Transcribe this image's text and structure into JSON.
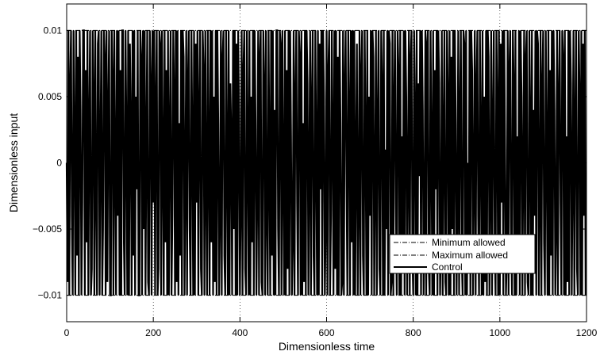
{
  "chart_data": {
    "type": "line",
    "title": "",
    "xlabel": "Dimensionless time",
    "ylabel": "Dimensionless input",
    "xlim": [
      0,
      1200
    ],
    "ylim": [
      -0.012,
      0.012
    ],
    "xticks": [
      0,
      200,
      400,
      600,
      800,
      1000,
      1200
    ],
    "xtick_labels": [
      "0",
      "200",
      "400",
      "600",
      "800",
      "1000",
      "1200"
    ],
    "yticks": [
      -0.01,
      -0.005,
      0,
      0.005,
      0.01
    ],
    "ytick_labels": [
      "−0.01",
      "−0.005",
      "0",
      "0.005",
      "0.01"
    ],
    "grid": "vertical dotted",
    "legend_position": "lower-right",
    "series": [
      {
        "name": "Minimum allowed",
        "style": "dash-dot",
        "x": [
          0,
          1200
        ],
        "y": [
          -0.01,
          -0.01
        ]
      },
      {
        "name": "Maximum allowed",
        "style": "dash-dot",
        "x": [
          0,
          1200
        ],
        "y": [
          0.01,
          0.01
        ]
      },
      {
        "name": "Control",
        "style": "solid",
        "x_start": 0,
        "x_step": 2,
        "y": [
          0.0,
          -0.009,
          0.01,
          -0.01,
          0.006,
          0.01,
          -0.004,
          -0.01,
          0.01,
          0.002,
          -0.01,
          0.01,
          -0.007,
          0.008,
          -0.01,
          0.01,
          0.004,
          -0.01,
          -0.003,
          0.01,
          0.01,
          -0.01,
          0.007,
          -0.006,
          0.01,
          -0.01,
          0.003,
          0.01,
          -0.01,
          -0.008,
          0.01,
          0.005,
          -0.01,
          0.01,
          -0.002,
          -0.01,
          0.009,
          0.01,
          -0.01,
          0.001,
          0.01,
          -0.01,
          -0.005,
          0.01,
          0.008,
          -0.01,
          0.01,
          -0.009,
          0.004,
          0.01,
          -0.01,
          -0.01,
          0.01,
          0.006,
          -0.01,
          0.01,
          0.0,
          -0.01,
          0.01,
          -0.004,
          0.01,
          -0.01,
          0.007,
          -0.01,
          0.01,
          0.01,
          -0.006,
          -0.01,
          0.01,
          0.002,
          -0.01,
          0.01,
          -0.01,
          0.009,
          0.003,
          -0.01,
          0.01,
          -0.007,
          0.01,
          -0.01,
          0.005,
          -0.002,
          0.01,
          -0.01,
          -0.01,
          0.01,
          0.008,
          -0.01,
          0.01,
          -0.005,
          0.01,
          -0.01,
          0.001,
          0.01,
          -0.009,
          -0.01,
          0.01,
          0.006,
          -0.01,
          0.01,
          -0.003,
          0.01,
          -0.01,
          0.004,
          0.01,
          -0.01,
          -0.008,
          0.01,
          0.009,
          -0.01,
          0.01,
          0.0,
          -0.01,
          0.01,
          -0.006,
          0.007,
          -0.01,
          0.01,
          -0.01,
          0.002,
          0.01,
          -0.01,
          -0.004,
          0.01,
          0.005,
          -0.01,
          0.01,
          -0.009,
          0.01,
          -0.01,
          0.003,
          -0.007,
          0.01,
          -0.01,
          0.01,
          0.008,
          -0.01,
          -0.001,
          0.01,
          -0.01,
          0.006,
          0.01,
          -0.005,
          -0.01,
          0.01,
          0.002,
          -0.01,
          0.01,
          -0.01,
          0.009,
          -0.003,
          0.01,
          -0.01,
          0.004,
          0.01,
          -0.008,
          -0.01,
          0.01,
          0.007,
          -0.01,
          0.01,
          -0.002,
          -0.01,
          0.01,
          0.001,
          -0.01,
          0.01,
          -0.006,
          0.01,
          -0.01,
          0.005,
          -0.009,
          0.01,
          -0.01,
          0.01,
          0.003,
          -0.01,
          -0.004,
          0.01,
          -0.01,
          0.008,
          0.01,
          -0.007,
          -0.01,
          0.01,
          0.0,
          -0.01,
          0.01,
          -0.01,
          0.006,
          0.002,
          -0.01,
          0.01,
          -0.005,
          0.01,
          -0.01,
          0.009,
          -0.01,
          0.01,
          0.004,
          -0.01,
          -0.003,
          0.01,
          -0.01,
          0.007,
          0.01,
          -0.008,
          -0.01,
          0.01,
          0.001,
          -0.01,
          0.01,
          -0.01,
          0.005,
          -0.006,
          0.01,
          -0.01,
          0.01,
          0.003,
          -0.01,
          -0.002,
          0.01,
          -0.01,
          0.008,
          0.01,
          -0.009,
          -0.01,
          0.01,
          0.006,
          -0.01,
          0.01,
          -0.004,
          -0.01,
          0.01,
          0.0,
          -0.01,
          0.01,
          -0.007,
          0.01,
          -0.01,
          0.004,
          -0.01,
          0.01,
          0.01,
          -0.005,
          -0.01,
          0.01,
          0.009,
          -0.01,
          0.01,
          -0.001,
          -0.01,
          0.01,
          -0.01,
          0.007,
          -0.008,
          0.01,
          -0.01,
          0.01,
          0.002,
          -0.01,
          -0.006,
          0.01,
          -0.01,
          0.005,
          0.01,
          -0.003,
          -0.01,
          0.01,
          0.008,
          -0.01,
          0.01,
          -0.01,
          0.003,
          -0.009,
          0.01,
          -0.01,
          0.01,
          0.006,
          -0.01,
          0.0,
          0.01,
          -0.01,
          0.004,
          0.01,
          -0.007,
          -0.01,
          0.01,
          0.001,
          -0.01,
          0.01,
          -0.01,
          0.009,
          -0.002,
          0.01,
          -0.01,
          0.01,
          0.005,
          -0.01,
          -0.005,
          0.01,
          -0.01,
          0.007,
          0.01,
          -0.01,
          -0.004,
          0.01,
          0.002,
          -0.01,
          0.01,
          -0.008,
          0.01,
          -0.01,
          0.008,
          -0.01,
          0.01,
          0.003,
          -0.01,
          -0.009,
          0.01,
          -0.01,
          0.006,
          0.01,
          -0.001,
          -0.01,
          0.01,
          0.004,
          -0.01,
          0.01,
          -0.006,
          0.01,
          -0.01,
          0.01,
          -0.01,
          0.0,
          0.009,
          -0.01,
          -0.003,
          0.01,
          -0.01,
          0.007,
          0.01,
          -0.007,
          -0.01,
          0.01,
          0.002,
          -0.01,
          0.01,
          -0.01,
          0.005,
          -0.004,
          0.01,
          -0.01,
          0.01,
          0.008,
          -0.01,
          -0.002,
          0.01,
          -0.01,
          0.003,
          0.01,
          -0.008,
          -0.01,
          0.01,
          0.006,
          -0.01,
          0.01,
          -0.01,
          0.001,
          -0.005,
          0.01,
          -0.01,
          0.01,
          0.009,
          -0.01,
          -0.009,
          0.01,
          -0.01,
          0.004,
          0.01,
          -0.003,
          -0.01,
          0.01,
          0.007,
          -0.01,
          0.01,
          -0.01,
          0.002,
          -0.006,
          0.01,
          -0.01,
          0.01,
          0.005,
          -0.01,
          0.0,
          0.01,
          -0.01,
          0.008,
          0.01,
          -0.007,
          -0.01,
          0.01,
          0.003,
          -0.01,
          0.01,
          -0.01,
          0.006,
          -0.001,
          0.01,
          -0.01,
          0.01,
          0.004,
          -0.01,
          -0.004,
          0.01,
          -0.01,
          0.009,
          0.01,
          -0.008,
          -0.01,
          0.01,
          0.001,
          -0.01,
          0.01,
          -0.01,
          0.007,
          -0.002,
          0.01,
          -0.01,
          0.01,
          0.006,
          -0.01,
          -0.006,
          0.01,
          -0.01,
          0.002,
          0.01,
          -0.009,
          -0.01,
          0.01,
          0.005,
          -0.01,
          0.01,
          -0.01,
          0.008,
          -0.005,
          0.01,
          -0.01,
          0.01,
          0.003,
          -0.01,
          -0.003,
          0.01,
          -0.01,
          0.004,
          0.01,
          -0.007,
          -0.01,
          0.01,
          0.009,
          -0.01,
          0.01,
          -0.01,
          0.0,
          -0.008,
          0.01,
          -0.01,
          0.01,
          0.007,
          -0.01,
          -0.001,
          0.01,
          -0.01,
          0.006,
          0.01,
          -0.004,
          -0.01,
          0.01,
          0.002,
          -0.01,
          0.01,
          -0.01,
          0.005,
          -0.009,
          0.01,
          -0.01,
          0.01,
          0.008,
          -0.01,
          -0.002,
          0.01,
          -0.01,
          0.003,
          0.01,
          -0.006,
          -0.01,
          0.01,
          0.004,
          -0.01,
          0.01,
          -0.01,
          0.009,
          -0.003,
          0.01,
          -0.01,
          0.01,
          0.001,
          -0.01,
          -0.007,
          0.01,
          -0.01,
          0.007,
          0.01,
          -0.005,
          -0.01,
          0.01,
          0.006,
          -0.01,
          0.01,
          -0.01,
          0.002,
          -0.008,
          0.01,
          -0.01,
          0.01,
          0.005,
          -0.01,
          0.0,
          0.01,
          -0.01,
          0.008,
          0.01,
          -0.009,
          -0.01,
          0.01,
          0.003,
          -0.01,
          0.01,
          -0.01,
          0.004,
          -0.004,
          0.01,
          -0.01,
          0.01,
          0.009,
          -0.01,
          -0.002,
          0.01,
          -0.01,
          0.006,
          0.01,
          -0.006,
          -0.01,
          0.01,
          0.001,
          -0.01,
          0.01,
          -0.01,
          0.007,
          -0.007,
          0.01,
          -0.01,
          0.01,
          0.004,
          -0.01,
          -0.005,
          0.01,
          -0.01,
          0.005,
          0.01,
          -0.003,
          -0.01,
          0.01,
          0.008,
          -0.01,
          0.01,
          -0.01,
          0.002,
          -0.009,
          0.01,
          -0.01,
          0.01,
          0.006,
          -0.01,
          -0.001,
          0.01,
          -0.01,
          0.003,
          0.01,
          -0.008,
          -0.01,
          0.01,
          0.005,
          -0.01,
          0.01,
          -0.01,
          0.009,
          -0.004,
          0.01,
          -0.01
        ]
      }
    ]
  }
}
